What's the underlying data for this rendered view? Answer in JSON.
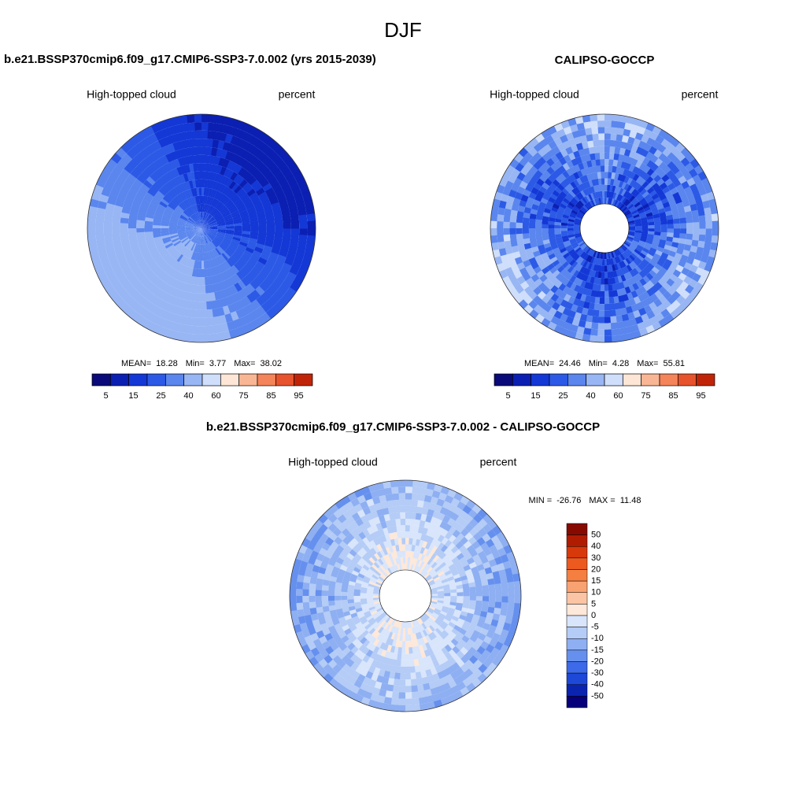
{
  "title": "DJF",
  "panels": [
    {
      "title": "b.e21.BSSP370cmip6.f09_g17.CMIP6-SSP3-7.0.002 (yrs 2015-2039)",
      "variable": "High-topped cloud",
      "units": "percent",
      "stats": [
        {
          "label": "MEAN=",
          "value": 18.28
        },
        {
          "label": "Min=",
          "value": 3.77
        },
        {
          "label": "Max=",
          "value": 38.02
        }
      ],
      "colorbar": {
        "colors": [
          "#0a0a7a",
          "#0b1fb2",
          "#1438d6",
          "#2c5ae6",
          "#5a86ee",
          "#98b6f4",
          "#cfdefa",
          "#fde6d6",
          "#f9b695",
          "#f4845a",
          "#e6532c",
          "#c02408"
        ],
        "labels": [
          5,
          15,
          25,
          40,
          60,
          75,
          85,
          95
        ]
      }
    },
    {
      "title": "CALIPSO-GOCCP",
      "variable": "High-topped cloud",
      "units": "percent",
      "stats": [
        {
          "label": "MEAN=",
          "value": 24.46
        },
        {
          "label": "Min=",
          "value": 4.28
        },
        {
          "label": "Max=",
          "value": 55.81
        }
      ],
      "colorbar": {
        "colors": [
          "#0a0a7a",
          "#0b1fb2",
          "#1438d6",
          "#2c5ae6",
          "#5a86ee",
          "#98b6f4",
          "#cfdefa",
          "#fde6d6",
          "#f9b695",
          "#f4845a",
          "#e6532c",
          "#c02408"
        ],
        "labels": [
          5,
          15,
          25,
          40,
          60,
          75,
          85,
          95
        ]
      }
    }
  ],
  "difference": {
    "title": "b.e21.BSSP370cmip6.f09_g17.CMIP6-SSP3-7.0.002 - CALIPSO-GOCCP",
    "variable": "High-topped cloud",
    "units": "percent",
    "stats": [
      {
        "label": "MIN =",
        "value": -26.76
      },
      {
        "label": "MAX =",
        "value": 11.48
      }
    ],
    "colorbar": {
      "colors": [
        "#870a00",
        "#b01c02",
        "#d8390a",
        "#ec5a20",
        "#f47f40",
        "#f8a272",
        "#fbc4a4",
        "#fde8d9",
        "#d8e5fb",
        "#b4ccf6",
        "#8eaff2",
        "#6690ee",
        "#3c6ae8",
        "#1d48d8",
        "#0a24b0",
        "#06007a"
      ],
      "labels": [
        50,
        40,
        30,
        20,
        15,
        10,
        5,
        0,
        -5,
        -10,
        -15,
        -20,
        -30,
        -40,
        -50
      ]
    }
  }
}
